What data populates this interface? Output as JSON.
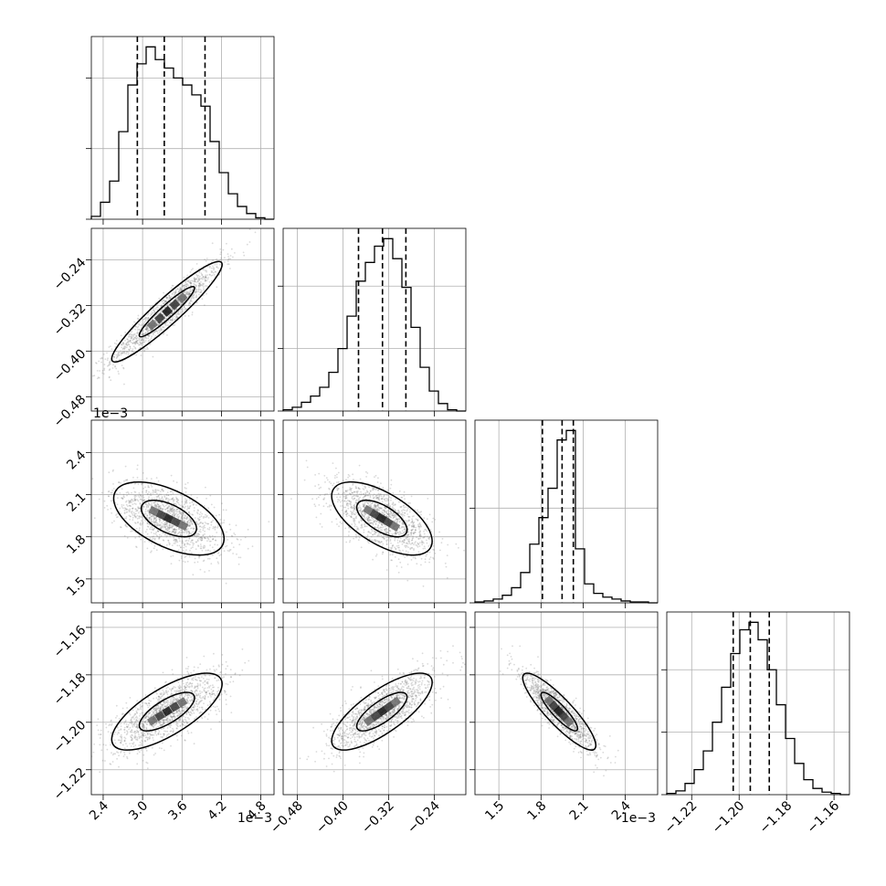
{
  "figure": {
    "sci_notation_label": "1e−3",
    "grid": true,
    "colors": {
      "points": "#7a7a7a",
      "hist": "#000000",
      "contour_fill_outer": "#f4f4f4",
      "contour_fill_mid": "#bdbdbd",
      "contour_fill_core": "#000000"
    }
  },
  "chart_data": {
    "type": "corner",
    "parameters": [
      {
        "id": "p0",
        "range": [
          2.22,
          5.0
        ],
        "ticks": [
          2.4,
          3.0,
          3.6,
          4.2,
          4.8
        ],
        "tick_labels": [
          "2.4",
          "3.0",
          "3.6",
          "4.2",
          "4.8"
        ],
        "offset_label": "1e−3"
      },
      {
        "id": "p1",
        "range": [
          -0.505,
          -0.185
        ],
        "ticks": [
          -0.48,
          -0.4,
          -0.32,
          -0.24
        ],
        "tick_labels": [
          "−0.48",
          "−0.40",
          "−0.32",
          "−0.24"
        ],
        "offset_label": ""
      },
      {
        "id": "p2",
        "range": [
          1.33,
          2.63
        ],
        "ticks": [
          1.5,
          1.8,
          2.1,
          2.4
        ],
        "tick_labels": [
          "1.5",
          "1.8",
          "2.1",
          "2.4"
        ],
        "offset_label": "1e−3"
      },
      {
        "id": "p3",
        "range": [
          -1.2305,
          -1.1535
        ],
        "ticks": [
          -1.22,
          -1.2,
          -1.18,
          -1.16
        ],
        "tick_labels": [
          "−1.22",
          "−1.20",
          "−1.18",
          "−1.16"
        ],
        "offset_label": ""
      }
    ],
    "marginals": [
      {
        "param": 0,
        "quantiles": [
          2.92,
          3.33,
          3.95
        ],
        "bin_edges": [
          2.22,
          2.359,
          2.498,
          2.637,
          2.776,
          2.915,
          3.054,
          3.193,
          3.332,
          3.471,
          3.61,
          3.749,
          3.888,
          4.027,
          4.166,
          4.305,
          4.444,
          4.583,
          4.722,
          4.861,
          5.0
        ],
        "counts": [
          2,
          12,
          27,
          62,
          95,
          110,
          122,
          113,
          107,
          100,
          95,
          88,
          80,
          55,
          33,
          18,
          9,
          4,
          1,
          0
        ]
      },
      {
        "param": 1,
        "quantiles": [
          -0.373,
          -0.331,
          -0.29
        ],
        "bin_edges": [
          -0.505,
          -0.489,
          -0.473,
          -0.457,
          -0.441,
          -0.425,
          -0.409,
          -0.393,
          -0.377,
          -0.361,
          -0.345,
          -0.329,
          -0.313,
          -0.297,
          -0.281,
          -0.265,
          -0.249,
          -0.233,
          -0.217,
          -0.201,
          -0.185
        ],
        "counts": [
          1,
          3,
          7,
          12,
          19,
          31,
          50,
          76,
          104,
          119,
          132,
          138,
          122,
          99,
          67,
          35,
          16,
          6,
          1,
          0
        ]
      },
      {
        "param": 2,
        "quantiles": [
          1.81,
          1.95,
          2.03
        ],
        "bin_edges": [
          1.33,
          1.395,
          1.46,
          1.525,
          1.59,
          1.655,
          1.72,
          1.785,
          1.85,
          1.915,
          1.98,
          2.045,
          2.11,
          2.175,
          2.24,
          2.305,
          2.37,
          2.435,
          2.5,
          2.565,
          2.63
        ],
        "counts": [
          1,
          2,
          4,
          8,
          16,
          32,
          62,
          90,
          121,
          172,
          182,
          57,
          20,
          10,
          6,
          4,
          2,
          1,
          1,
          0
        ]
      },
      {
        "param": 3,
        "quantiles": [
          -1.2025,
          -1.1953,
          -1.1873
        ],
        "bin_edges": [
          -1.2305,
          -1.22665,
          -1.2228,
          -1.21895,
          -1.2151,
          -1.21125,
          -1.2074,
          -1.20355,
          -1.1997,
          -1.19585,
          -1.192,
          -1.18815,
          -1.1843,
          -1.18045,
          -1.1766,
          -1.17275,
          -1.1689,
          -1.16505,
          -1.1612,
          -1.15735,
          -1.1535
        ],
        "counts": [
          1,
          3,
          9,
          20,
          35,
          58,
          86,
          113,
          132,
          138,
          124,
          100,
          72,
          45,
          25,
          12,
          5,
          2,
          1,
          0
        ]
      }
    ],
    "joints": [
      {
        "x": 0,
        "y": 1,
        "center": [
          3.37,
          -0.331
        ],
        "spread": [
          0.42,
          0.044
        ],
        "rho": 0.94
      },
      {
        "x": 0,
        "y": 2,
        "center": [
          3.4,
          1.93
        ],
        "spread": [
          0.42,
          0.13
        ],
        "rho": -0.55
      },
      {
        "x": 1,
        "y": 2,
        "center": [
          -0.332,
          1.93
        ],
        "spread": [
          0.044,
          0.13
        ],
        "rho": -0.62
      },
      {
        "x": 0,
        "y": 3,
        "center": [
          3.37,
          -1.1955
        ],
        "spread": [
          0.42,
          0.0081
        ],
        "rho": 0.72
      },
      {
        "x": 1,
        "y": 3,
        "center": [
          -0.332,
          -1.1955
        ],
        "spread": [
          0.044,
          0.0081
        ],
        "rho": 0.76
      },
      {
        "x": 2,
        "y": 3,
        "center": [
          1.93,
          -1.1955
        ],
        "spread": [
          0.13,
          0.0081
        ],
        "rho": -0.88
      }
    ],
    "contour_sigma_levels": [
      1.0,
      2.0
    ]
  }
}
